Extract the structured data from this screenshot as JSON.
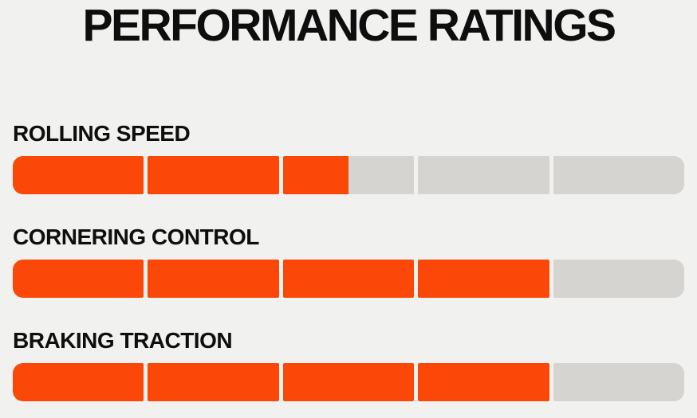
{
  "title": "PERFORMANCE RATINGS",
  "colors": {
    "background": "#F1F1EF",
    "accent_orange": "#FB4708",
    "track_gray": "#D6D4D1",
    "text": "#0E0E0E"
  },
  "ratings": {
    "max_segments": 5,
    "items": [
      {
        "label": "ROLLING SPEED",
        "value": 2.5
      },
      {
        "label": "CORNERING CONTROL",
        "value": 4
      },
      {
        "label": "BRAKING TRACTION",
        "value": 4
      }
    ]
  },
  "chart_data": {
    "type": "bar",
    "orientation": "horizontal",
    "title": "PERFORMANCE RATINGS",
    "categories": [
      "ROLLING SPEED",
      "CORNERING CONTROL",
      "BRAKING TRACTION"
    ],
    "values": [
      2.5,
      4,
      4
    ],
    "value_range": [
      0,
      5
    ],
    "segments_per_bar": 5,
    "xlabel": "",
    "ylabel": "",
    "legend": "none",
    "grid": false,
    "fill_color": "#FB4708",
    "track_color": "#D6D4D1"
  }
}
